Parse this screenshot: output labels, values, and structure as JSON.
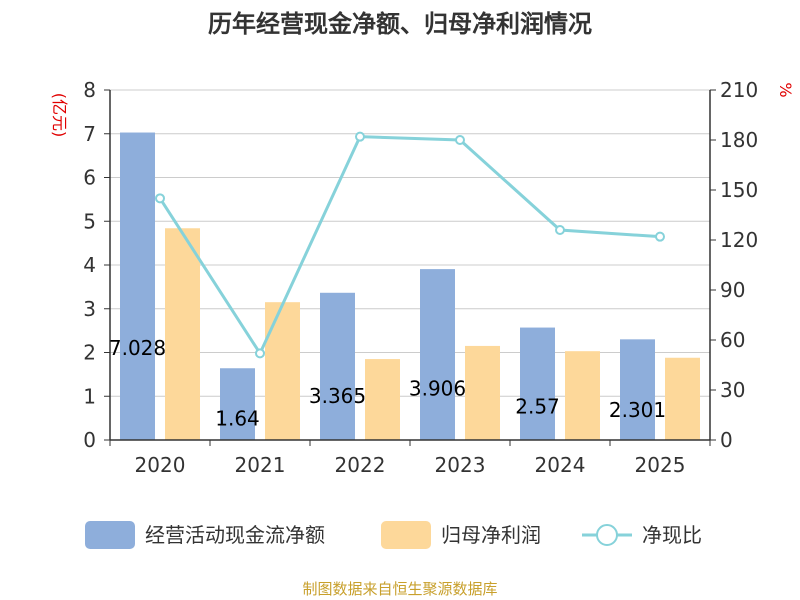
{
  "chart_data": {
    "type": "bar",
    "title": "历年经营现金净额、归母净利润情况",
    "categories": [
      "2020",
      "2021",
      "2022",
      "2023",
      "2024",
      "2025"
    ],
    "y_left": {
      "unit": "(亿元)",
      "ylim": [
        0,
        8
      ],
      "ticks": [
        "0",
        "1",
        "2",
        "3",
        "4",
        "5",
        "6",
        "7",
        "8"
      ]
    },
    "y_right": {
      "unit": "%",
      "ylim": [
        0,
        210
      ],
      "ticks": [
        "0",
        "30",
        "60",
        "90",
        "120",
        "150",
        "180",
        "210"
      ]
    },
    "series": [
      {
        "name": "经营活动现金流净额",
        "type": "bar",
        "axis": "left",
        "color": "#8eaedb",
        "values": [
          7.028,
          1.64,
          3.365,
          3.906,
          2.57,
          2.301
        ],
        "labels": [
          "7.028",
          "1.64",
          "3.365",
          "3.906",
          "2.57",
          "2.301"
        ]
      },
      {
        "name": "归母净利润",
        "type": "bar",
        "axis": "left",
        "color": "#fdd89a",
        "values": [
          4.84,
          3.15,
          1.85,
          2.15,
          2.03,
          1.88
        ]
      },
      {
        "name": "净现比",
        "type": "line",
        "axis": "right",
        "color": "#86d2da",
        "values": [
          145,
          52,
          182,
          180,
          126,
          122
        ]
      }
    ],
    "grid": true,
    "legend": "bottom"
  },
  "source": "制图数据来自恒生聚源数据库"
}
